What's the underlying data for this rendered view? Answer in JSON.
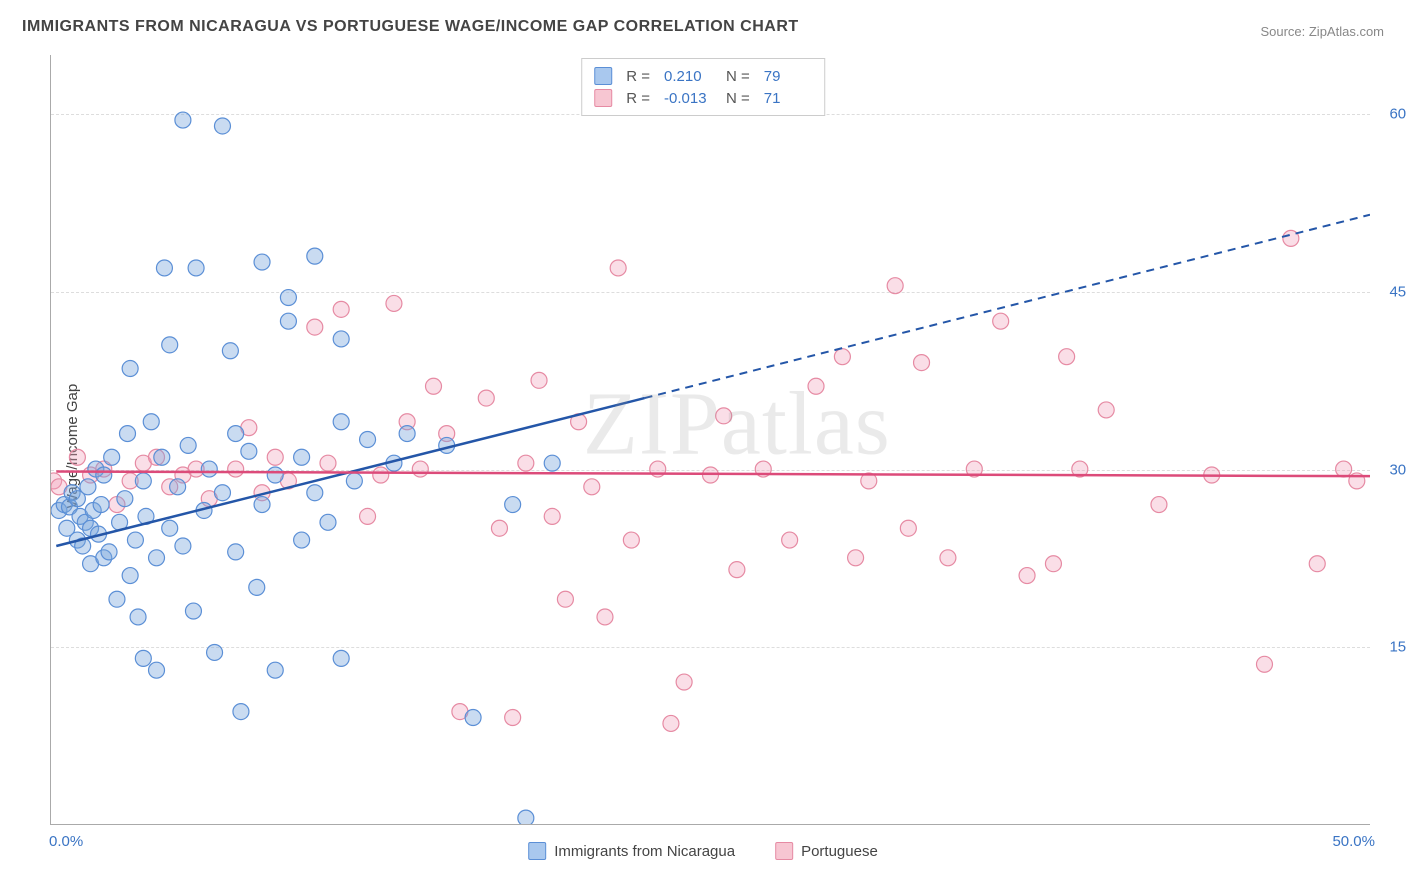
{
  "title": "IMMIGRANTS FROM NICARAGUA VS PORTUGUESE WAGE/INCOME GAP CORRELATION CHART",
  "source_label": "Source: ZipAtlas.com",
  "ylabel": "Wage/Income Gap",
  "watermark": "ZIPatlas",
  "legend_top": {
    "series": [
      {
        "swatch_fill": "#a9c8ee",
        "swatch_border": "#5b8fd6",
        "r_label": "R =",
        "r_value": "0.210",
        "n_label": "N =",
        "n_value": "79",
        "value_color": "#3a74c4"
      },
      {
        "swatch_fill": "#f7c6d2",
        "swatch_border": "#e68aa3",
        "r_label": "R =",
        "r_value": "-0.013",
        "n_label": "N =",
        "n_value": "71",
        "value_color": "#3a74c4"
      }
    ]
  },
  "legend_bottom": {
    "items": [
      {
        "swatch_fill": "#a9c8ee",
        "swatch_border": "#5b8fd6",
        "label": "Immigrants from Nicaragua"
      },
      {
        "swatch_fill": "#f7c6d2",
        "swatch_border": "#e68aa3",
        "label": "Portuguese"
      }
    ]
  },
  "chart": {
    "type": "scatter",
    "xlim": [
      0,
      50
    ],
    "ylim": [
      0,
      65
    ],
    "xticks": [
      {
        "value": 0,
        "label": "0.0%"
      },
      {
        "value": 50,
        "label": "50.0%"
      }
    ],
    "yticks": [
      {
        "value": 15,
        "label": "15.0%"
      },
      {
        "value": 30,
        "label": "30.0%"
      },
      {
        "value": 45,
        "label": "45.0%"
      },
      {
        "value": 60,
        "label": "60.0%"
      }
    ],
    "axis_label_color": "#3a74c4",
    "grid_color": "#dddddd",
    "background_color": "#ffffff",
    "marker_radius": 8,
    "series": [
      {
        "name": "Immigrants from Nicaragua",
        "fill": "rgba(120,165,220,0.40)",
        "stroke": "#5b8fd6",
        "line_color": "#2456a8",
        "trend": {
          "x1": 0.2,
          "y1": 23.5,
          "x2": 22.5,
          "y2": 36.0,
          "x2_ext": 50,
          "y2_ext": 51.5
        },
        "points": [
          [
            0.3,
            26.5
          ],
          [
            0.5,
            27.0
          ],
          [
            0.6,
            25.0
          ],
          [
            0.7,
            26.8
          ],
          [
            0.8,
            28.0
          ],
          [
            1.0,
            24.0
          ],
          [
            1.0,
            27.5
          ],
          [
            1.1,
            26.0
          ],
          [
            1.2,
            23.5
          ],
          [
            1.3,
            25.5
          ],
          [
            1.4,
            28.5
          ],
          [
            1.5,
            22.0
          ],
          [
            1.5,
            25.0
          ],
          [
            1.6,
            26.5
          ],
          [
            1.7,
            30.0
          ],
          [
            1.8,
            24.5
          ],
          [
            1.9,
            27.0
          ],
          [
            2.0,
            22.5
          ],
          [
            2.0,
            29.5
          ],
          [
            2.2,
            23.0
          ],
          [
            2.3,
            31.0
          ],
          [
            2.5,
            19.0
          ],
          [
            2.6,
            25.5
          ],
          [
            2.8,
            27.5
          ],
          [
            2.9,
            33.0
          ],
          [
            3.0,
            21.0
          ],
          [
            3.0,
            38.5
          ],
          [
            3.2,
            24.0
          ],
          [
            3.3,
            17.5
          ],
          [
            3.5,
            29.0
          ],
          [
            3.5,
            14.0
          ],
          [
            3.6,
            26.0
          ],
          [
            3.8,
            34.0
          ],
          [
            4.0,
            22.5
          ],
          [
            4.0,
            13.0
          ],
          [
            4.2,
            31.0
          ],
          [
            4.3,
            47.0
          ],
          [
            4.5,
            40.5
          ],
          [
            4.5,
            25.0
          ],
          [
            4.8,
            28.5
          ],
          [
            5.0,
            59.5
          ],
          [
            5.0,
            23.5
          ],
          [
            5.2,
            32.0
          ],
          [
            5.4,
            18.0
          ],
          [
            5.5,
            47.0
          ],
          [
            5.8,
            26.5
          ],
          [
            6.0,
            30.0
          ],
          [
            6.2,
            14.5
          ],
          [
            6.5,
            59.0
          ],
          [
            6.5,
            28.0
          ],
          [
            6.8,
            40.0
          ],
          [
            7.0,
            33.0
          ],
          [
            7.0,
            23.0
          ],
          [
            7.2,
            9.5
          ],
          [
            7.5,
            31.5
          ],
          [
            7.8,
            20.0
          ],
          [
            8.0,
            47.5
          ],
          [
            8.0,
            27.0
          ],
          [
            8.5,
            29.5
          ],
          [
            8.5,
            13.0
          ],
          [
            9.0,
            42.5
          ],
          [
            9.0,
            44.5
          ],
          [
            9.5,
            31.0
          ],
          [
            9.5,
            24.0
          ],
          [
            10.0,
            28.0
          ],
          [
            10.0,
            48.0
          ],
          [
            10.5,
            25.5
          ],
          [
            11.0,
            41.0
          ],
          [
            11.0,
            34.0
          ],
          [
            11.0,
            14.0
          ],
          [
            11.5,
            29.0
          ],
          [
            12.0,
            32.5
          ],
          [
            13.0,
            30.5
          ],
          [
            13.5,
            33.0
          ],
          [
            15.0,
            32.0
          ],
          [
            16.0,
            9.0
          ],
          [
            17.5,
            27.0
          ],
          [
            18.0,
            0.5
          ],
          [
            19.0,
            30.5
          ]
        ]
      },
      {
        "name": "Portuguese",
        "fill": "rgba(240,160,185,0.35)",
        "stroke": "#e68aa3",
        "line_color": "#dc4b7a",
        "trend": {
          "x1": 0.2,
          "y1": 29.8,
          "x2": 50,
          "y2": 29.4,
          "x2_ext": 50,
          "y2_ext": 29.4
        },
        "points": [
          [
            0.1,
            29.0
          ],
          [
            0.3,
            28.5
          ],
          [
            1.0,
            31.0
          ],
          [
            1.5,
            29.5
          ],
          [
            2.0,
            30.0
          ],
          [
            2.5,
            27.0
          ],
          [
            3.0,
            29.0
          ],
          [
            3.5,
            30.5
          ],
          [
            4.0,
            31.0
          ],
          [
            4.5,
            28.5
          ],
          [
            5.0,
            29.5
          ],
          [
            5.5,
            30.0
          ],
          [
            6.0,
            27.5
          ],
          [
            7.0,
            30.0
          ],
          [
            7.5,
            33.5
          ],
          [
            8.0,
            28.0
          ],
          [
            8.5,
            31.0
          ],
          [
            9.0,
            29.0
          ],
          [
            10.0,
            42.0
          ],
          [
            10.5,
            30.5
          ],
          [
            11.0,
            43.5
          ],
          [
            12.0,
            26.0
          ],
          [
            12.5,
            29.5
          ],
          [
            13.0,
            44.0
          ],
          [
            13.5,
            34.0
          ],
          [
            14.0,
            30.0
          ],
          [
            14.5,
            37.0
          ],
          [
            15.0,
            33.0
          ],
          [
            15.5,
            9.5
          ],
          [
            16.5,
            36.0
          ],
          [
            17.0,
            25.0
          ],
          [
            17.5,
            9.0
          ],
          [
            18.0,
            30.5
          ],
          [
            18.5,
            37.5
          ],
          [
            19.0,
            26.0
          ],
          [
            19.5,
            19.0
          ],
          [
            20.0,
            34.0
          ],
          [
            20.5,
            28.5
          ],
          [
            21.0,
            17.5
          ],
          [
            21.5,
            47.0
          ],
          [
            22.0,
            24.0
          ],
          [
            23.0,
            30.0
          ],
          [
            23.5,
            8.5
          ],
          [
            24.0,
            12.0
          ],
          [
            25.0,
            29.5
          ],
          [
            25.5,
            34.5
          ],
          [
            26.0,
            21.5
          ],
          [
            27.0,
            30.0
          ],
          [
            28.0,
            24.0
          ],
          [
            29.0,
            37.0
          ],
          [
            30.0,
            39.5
          ],
          [
            30.5,
            22.5
          ],
          [
            31.0,
            29.0
          ],
          [
            32.0,
            45.5
          ],
          [
            32.5,
            25.0
          ],
          [
            33.0,
            39.0
          ],
          [
            34.0,
            22.5
          ],
          [
            35.0,
            30.0
          ],
          [
            36.0,
            42.5
          ],
          [
            37.0,
            21.0
          ],
          [
            38.0,
            22.0
          ],
          [
            38.5,
            39.5
          ],
          [
            39.0,
            30.0
          ],
          [
            40.0,
            35.0
          ],
          [
            42.0,
            27.0
          ],
          [
            44.0,
            29.5
          ],
          [
            46.0,
            13.5
          ],
          [
            47.0,
            49.5
          ],
          [
            48.0,
            22.0
          ],
          [
            49.0,
            30.0
          ],
          [
            49.5,
            29.0
          ]
        ]
      }
    ]
  }
}
